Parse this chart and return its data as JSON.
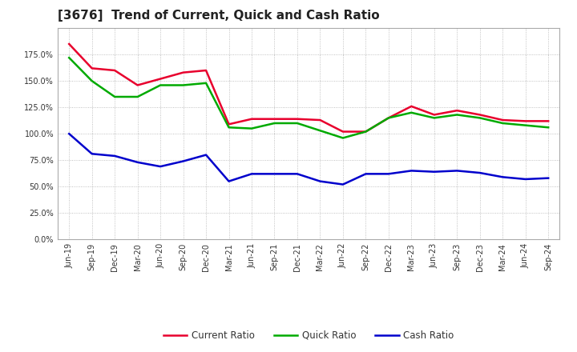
{
  "title": "[3676]  Trend of Current, Quick and Cash Ratio",
  "x_labels": [
    "Jun-19",
    "Sep-19",
    "Dec-19",
    "Mar-20",
    "Jun-20",
    "Sep-20",
    "Dec-20",
    "Mar-21",
    "Jun-21",
    "Sep-21",
    "Dec-21",
    "Mar-22",
    "Jun-22",
    "Sep-22",
    "Dec-22",
    "Mar-23",
    "Jun-23",
    "Sep-23",
    "Dec-23",
    "Mar-24",
    "Jun-24",
    "Sep-24"
  ],
  "current_ratio": [
    1.85,
    1.62,
    1.6,
    1.46,
    1.52,
    1.58,
    1.6,
    1.09,
    1.14,
    1.14,
    1.14,
    1.13,
    1.02,
    1.02,
    1.15,
    1.26,
    1.18,
    1.22,
    1.18,
    1.13,
    1.12,
    1.12
  ],
  "quick_ratio": [
    1.72,
    1.5,
    1.35,
    1.35,
    1.46,
    1.46,
    1.48,
    1.06,
    1.05,
    1.1,
    1.1,
    1.03,
    0.96,
    1.02,
    1.15,
    1.2,
    1.15,
    1.18,
    1.15,
    1.1,
    1.08,
    1.06
  ],
  "cash_ratio": [
    1.0,
    0.81,
    0.79,
    0.73,
    0.69,
    0.74,
    0.8,
    0.55,
    0.62,
    0.62,
    0.62,
    0.55,
    0.52,
    0.62,
    0.62,
    0.65,
    0.64,
    0.65,
    0.63,
    0.59,
    0.57,
    0.58
  ],
  "current_color": "#e8002d",
  "quick_color": "#00aa00",
  "cash_color": "#0000cc",
  "line_width": 1.8,
  "ylim_min": 0.0,
  "ylim_max": 2.0,
  "yticks": [
    0.0,
    0.25,
    0.5,
    0.75,
    1.0,
    1.25,
    1.5,
    1.75
  ],
  "legend_labels": [
    "Current Ratio",
    "Quick Ratio",
    "Cash Ratio"
  ],
  "background_color": "#ffffff",
  "grid_color": "#b0b0b0",
  "title_fontsize": 11,
  "tick_fontsize": 7,
  "legend_fontsize": 8.5
}
